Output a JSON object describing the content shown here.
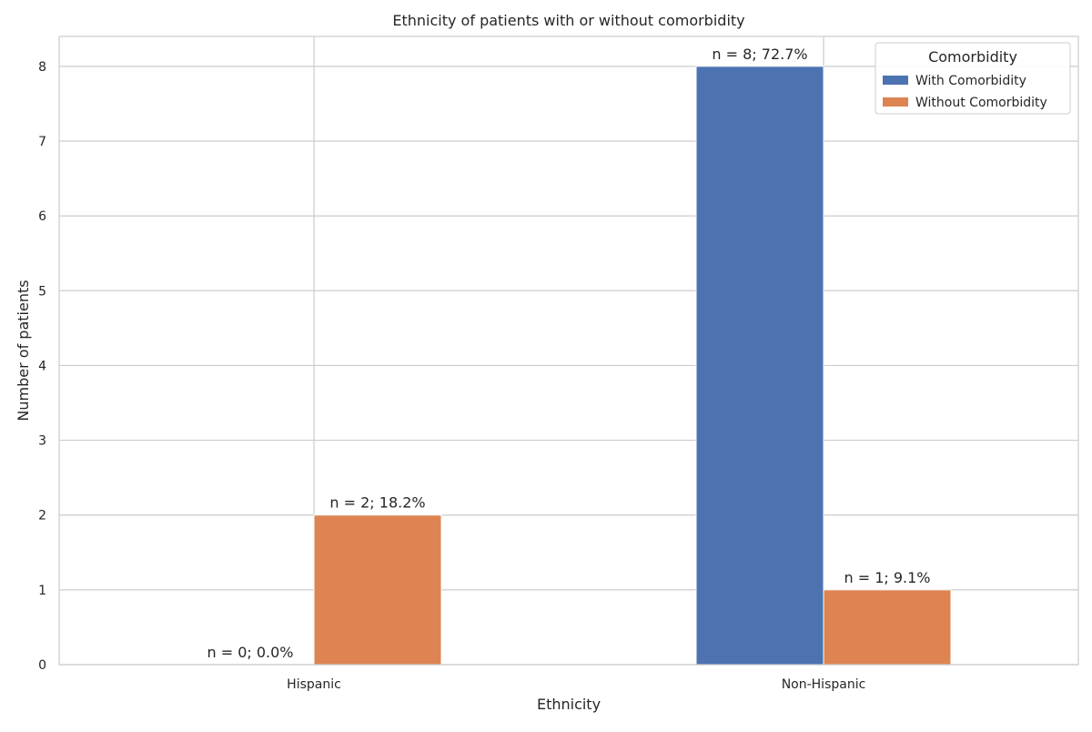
{
  "chart_data": {
    "type": "bar",
    "title": "Ethnicity of patients with or without comorbidity",
    "xlabel": "Ethnicity",
    "ylabel": "Number of patients",
    "categories": [
      "Hispanic",
      "Non-Hispanic"
    ],
    "series": [
      {
        "name": "With Comorbidity",
        "color": "#4c72b0",
        "values": [
          0,
          8
        ],
        "labels": [
          "n = 0; 0.0%",
          "n = 8; 72.7%"
        ]
      },
      {
        "name": "Without Comorbidity",
        "color": "#dd8452",
        "values": [
          2,
          1
        ],
        "labels": [
          "n = 2; 18.2%",
          "n = 1; 9.1%"
        ]
      }
    ],
    "ylim": [
      0,
      8.4
    ],
    "yticks": [
      "0",
      "1",
      "2",
      "3",
      "4",
      "5",
      "6",
      "7",
      "8"
    ],
    "grid": true,
    "legend": {
      "title": "Comorbidity",
      "placement": "top-right"
    }
  }
}
